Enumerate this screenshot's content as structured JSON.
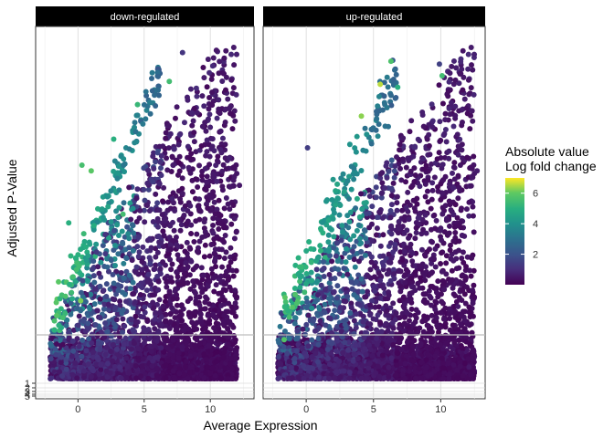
{
  "chart_data": {
    "type": "scatter",
    "xlabel": "Average Expression",
    "ylabel": "Adjusted P-Value",
    "xlim": [
      -3.2,
      13.3
    ],
    "x_ticks": [
      0,
      5,
      10
    ],
    "y_ticks": [
      1,
      2,
      3,
      4,
      5
    ],
    "y_scale": "reverse-log (dense ticks near bottom)",
    "threshold_line": 1.3,
    "grid": true,
    "facets": [
      {
        "label": "down-regulated",
        "cluster_centers": [
          {
            "x": 0,
            "y": 1.8,
            "lfc": 1.2
          },
          {
            "x": 3,
            "y": 2.8,
            "lfc": 1.0
          },
          {
            "x": 6,
            "y": 3.4,
            "lfc": 0.7
          },
          {
            "x": 8,
            "y": 3.0,
            "lfc": 0.4
          }
        ],
        "highlight_points": [
          {
            "x": 7.9,
            "y": 11.8,
            "lfc": 1.2
          },
          {
            "x": 6.9,
            "y": 10.8,
            "lfc": 5.5
          },
          {
            "x": 4.5,
            "y": 10.0,
            "lfc": 5.3
          },
          {
            "x": 2.7,
            "y": 8.8,
            "lfc": 5.0
          },
          {
            "x": 1.0,
            "y": 7.7,
            "lfc": 5.9
          },
          {
            "x": 0.3,
            "y": 7.9,
            "lfc": 5.6
          },
          {
            "x": 3.4,
            "y": 6.2,
            "lfc": 5.5
          },
          {
            "x": -0.7,
            "y": 5.9,
            "lfc": 5.0
          },
          {
            "x": 0.2,
            "y": 3.2,
            "lfc": 6.2
          },
          {
            "x": 12.2,
            "y": 7.2,
            "lfc": 0.5
          }
        ]
      },
      {
        "label": "up-regulated",
        "cluster_centers": [
          {
            "x": 2,
            "y": 2.4,
            "lfc": 1.0
          },
          {
            "x": 5,
            "y": 3.2,
            "lfc": 0.8
          },
          {
            "x": 7,
            "y": 3.6,
            "lfc": 0.6
          },
          {
            "x": 9,
            "y": 3.2,
            "lfc": 0.4
          }
        ],
        "highlight_points": [
          {
            "x": 6.3,
            "y": 11.5,
            "lfc": 5.7
          },
          {
            "x": 10.1,
            "y": 11.0,
            "lfc": 5.5
          },
          {
            "x": 5.5,
            "y": 10.7,
            "lfc": 6.6
          },
          {
            "x": 4.1,
            "y": 9.6,
            "lfc": 6.3
          },
          {
            "x": 6.8,
            "y": 10.6,
            "lfc": 5.0
          },
          {
            "x": 9.9,
            "y": 11.4,
            "lfc": 1.5
          },
          {
            "x": 2.0,
            "y": 7.4,
            "lfc": 4.2
          },
          {
            "x": 0.1,
            "y": 8.5,
            "lfc": 1.4
          },
          {
            "x": 12.7,
            "y": 7.7,
            "lfc": 0.6
          },
          {
            "x": 12.1,
            "y": 0.9,
            "lfc": 0.5
          }
        ]
      }
    ],
    "color_scale": {
      "name": "viridis",
      "title_line1": "Absolute value",
      "title_line2": "Log fold change",
      "min": 0,
      "max": 7,
      "ticks": [
        2,
        4,
        6
      ]
    }
  }
}
